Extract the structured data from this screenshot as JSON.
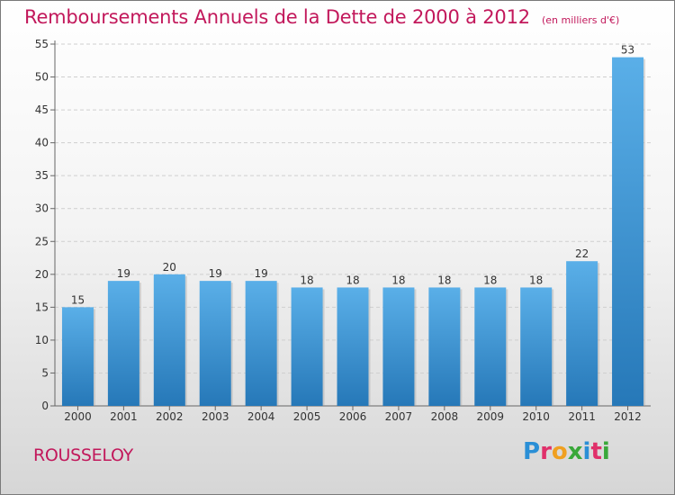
{
  "chart_data": {
    "type": "bar",
    "title": "Remboursements Annuels de la Dette de 2000 à 2012",
    "subtitle": "(en milliers d'€)",
    "categories": [
      "2000",
      "2001",
      "2002",
      "2003",
      "2004",
      "2005",
      "2006",
      "2007",
      "2008",
      "2009",
      "2010",
      "2011",
      "2012"
    ],
    "values": [
      15,
      19,
      20,
      19,
      19,
      18,
      18,
      18,
      18,
      18,
      18,
      22,
      53
    ],
    "yticks": [
      0,
      5,
      10,
      15,
      20,
      25,
      30,
      35,
      40,
      45,
      50,
      55
    ],
    "ylim": [
      0,
      55
    ],
    "xlabel": "",
    "ylabel": "",
    "bar_color_top": "#5aafe8",
    "bar_color_bottom": "#2678b8"
  },
  "commune": "ROUSSELOY",
  "logo": {
    "letters": [
      "P",
      "r",
      "o",
      "x",
      "i",
      "t",
      "i"
    ],
    "colors": [
      "#2a8fd6",
      "#e0306a",
      "#f0a020",
      "#3aa83a",
      "#2a8fd6",
      "#e0306a",
      "#3aa83a"
    ]
  }
}
